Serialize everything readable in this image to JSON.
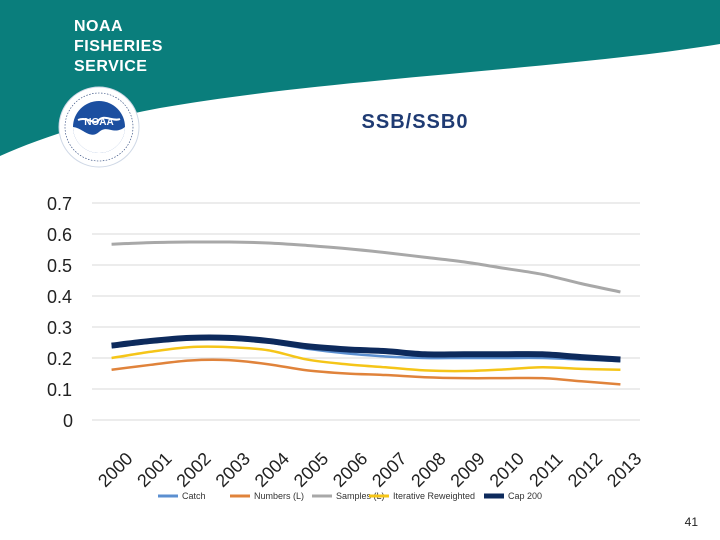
{
  "brand": {
    "lines": [
      "NOAA",
      "FISHERIES",
      "SERVICE"
    ],
    "logo_text": "NOAA",
    "colors": {
      "teal": "#0a7e7c",
      "navy": "#1f3b73"
    }
  },
  "slide": {
    "page_number": "41"
  },
  "chart_data": {
    "type": "line",
    "title": "SSB/SSB0",
    "xlabel": "",
    "ylabel": "",
    "x": [
      "2000",
      "2001",
      "2002",
      "2003",
      "2004",
      "2005",
      "2006",
      "2007",
      "2008",
      "2009",
      "2010",
      "2011",
      "2012",
      "2013"
    ],
    "y_ticks": [
      "0",
      "0.1",
      "0.2",
      "0.3",
      "0.4",
      "0.5",
      "0.6",
      "0.7"
    ],
    "ylim": [
      0,
      0.7
    ],
    "grid": true,
    "legend_position": "bottom",
    "series": [
      {
        "name": "Catch",
        "color": "#5b8fd0",
        "values": [
          0.235,
          0.25,
          0.26,
          0.26,
          0.25,
          0.23,
          0.215,
          0.205,
          0.2,
          0.2,
          0.2,
          0.2,
          0.195,
          0.19
        ]
      },
      {
        "name": "Numbers (L)",
        "color": "#e0833b",
        "values": [
          0.162,
          0.178,
          0.192,
          0.193,
          0.18,
          0.16,
          0.15,
          0.145,
          0.138,
          0.135,
          0.135,
          0.135,
          0.125,
          0.115
        ]
      },
      {
        "name": "Samples (L)",
        "color": "#a8a8a8",
        "values": [
          0.567,
          0.572,
          0.574,
          0.574,
          0.571,
          0.563,
          0.553,
          0.54,
          0.525,
          0.51,
          0.49,
          0.47,
          0.44,
          0.413
        ]
      },
      {
        "name": "Iterative Reweighted",
        "color": "#f5c518",
        "values": [
          0.2,
          0.22,
          0.235,
          0.235,
          0.225,
          0.195,
          0.18,
          0.17,
          0.16,
          0.158,
          0.163,
          0.17,
          0.165,
          0.162
        ]
      },
      {
        "name": "Cap 200",
        "color": "#0d2a5c",
        "values": [
          0.24,
          0.255,
          0.265,
          0.265,
          0.255,
          0.238,
          0.228,
          0.222,
          0.212,
          0.212,
          0.212,
          0.212,
          0.203,
          0.195
        ]
      }
    ]
  }
}
